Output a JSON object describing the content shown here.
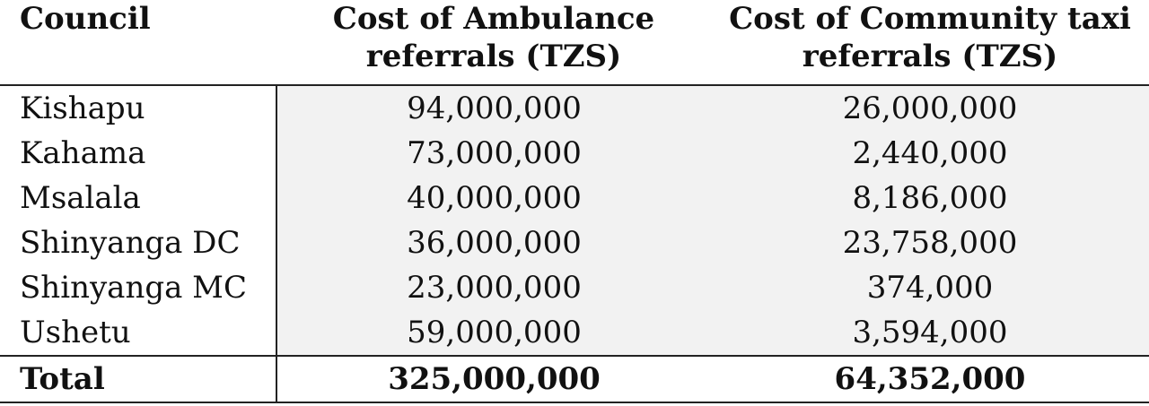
{
  "table": {
    "headers": {
      "council": "Council",
      "ambulance": "Cost of Ambulance referrals (TZS)",
      "taxi": "Cost of Community taxi referrals (TZS)"
    },
    "rows": [
      {
        "council": "Kishapu",
        "ambulance": "94,000,000",
        "taxi": "26,000,000"
      },
      {
        "council": "Kahama",
        "ambulance": "73,000,000",
        "taxi": "2,440,000"
      },
      {
        "council": "Msalala",
        "ambulance": "40,000,000",
        "taxi": "8,186,000"
      },
      {
        "council": "Shinyanga DC",
        "ambulance": "36,000,000",
        "taxi": "23,758,000"
      },
      {
        "council": "Shinyanga MC",
        "ambulance": "23,000,000",
        "taxi": "374,000"
      },
      {
        "council": "Ushetu",
        "ambulance": "59,000,000",
        "taxi": "3,594,000"
      }
    ],
    "total": {
      "council": "Total",
      "ambulance": "325,000,000",
      "taxi": "64,352,000"
    }
  }
}
